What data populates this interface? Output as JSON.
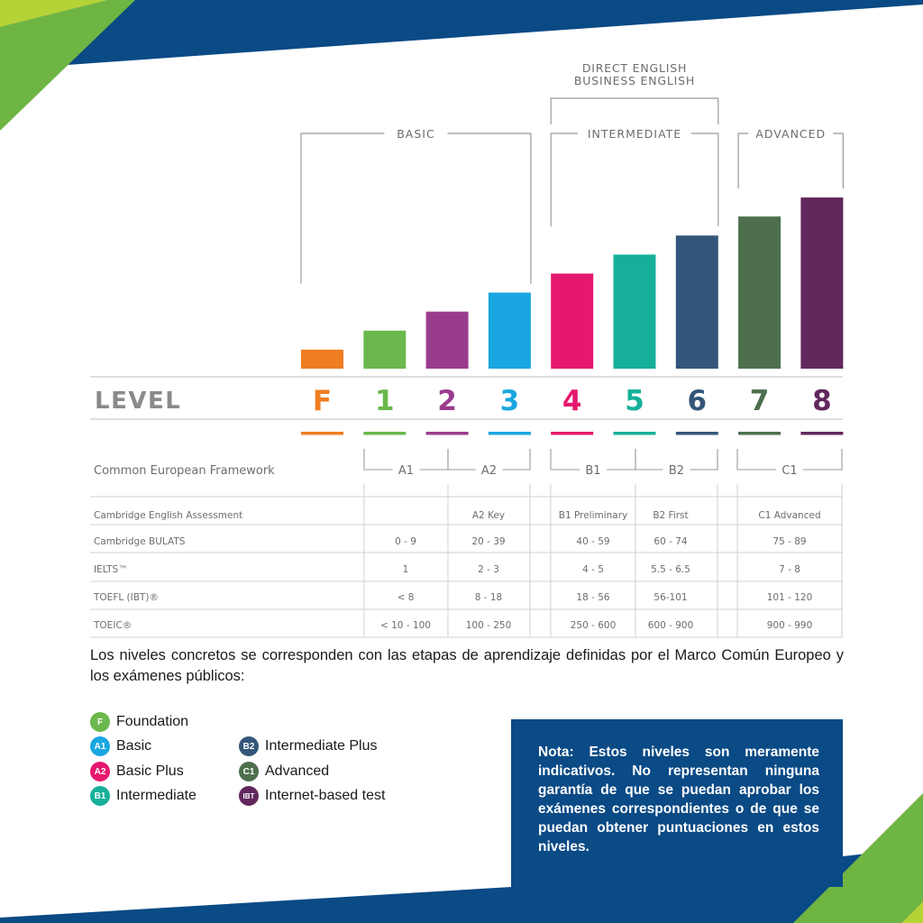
{
  "colors": {
    "navy": "#0a4a85",
    "green_accent": "#8dc63f"
  },
  "chart_data": {
    "type": "bar",
    "row_title": "LEVEL",
    "categories": [
      "F",
      "1",
      "2",
      "3",
      "4",
      "5",
      "6",
      "7",
      "8"
    ],
    "values": [
      1,
      2,
      3,
      4,
      5,
      6,
      7,
      8,
      9
    ],
    "colors": [
      "#ef7d22",
      "#6bb84d",
      "#9a3c8e",
      "#1aa6e0",
      "#e5186e",
      "#16b09a",
      "#34567a",
      "#4d6f4e",
      "#62285c"
    ],
    "groups": [
      {
        "label": "BASIC",
        "from": "F",
        "to": "3"
      },
      {
        "label": "INTERMEDIATE",
        "from": "4",
        "to": "6"
      },
      {
        "label": "ADVANCED",
        "from": "7",
        "to": "8"
      }
    ],
    "courses": [
      "DIRECT ENGLISH",
      "BUSINESS ENGLISH"
    ],
    "framework": {
      "title": "Common European Framework",
      "levels": [
        "A1",
        "A2",
        "B1",
        "B2",
        "C1"
      ]
    },
    "table": {
      "rows": [
        {
          "label": "Cambridge English Assessment",
          "cells": [
            "",
            "A2 Key",
            "B1 Preliminary",
            "B2 First",
            "C1 Advanced"
          ]
        },
        {
          "label": "Cambridge BULATS",
          "cells": [
            "0 - 9",
            "20 - 39",
            "40 - 59",
            "60 - 74",
            "75 - 89"
          ]
        },
        {
          "label": "IELTS™",
          "cells": [
            "1",
            "2 - 3",
            "4 - 5",
            "5.5 - 6.5",
            "7 - 8"
          ]
        },
        {
          "label": "TOEFL (IBT)®",
          "cells": [
            "< 8",
            "8 - 18",
            "18 - 56",
            "56-101",
            "101 - 120"
          ]
        },
        {
          "label": "TOEIC®",
          "cells": [
            "< 10 - 100",
            "100 - 250",
            "250 - 600",
            "600 - 900",
            "900 - 990"
          ]
        }
      ]
    }
  },
  "intro_text": "Los niveles concretos se corresponden con las etapas de aprendizaje definidas por el Marco Común Europeo y los exámenes públicos:",
  "legend": [
    {
      "code": "F",
      "label": "Foundation",
      "color": "#6bb84d"
    },
    {
      "code": "A1",
      "label": "Basic",
      "color": "#1aa6e0"
    },
    {
      "code": "A2",
      "label": "Basic Plus",
      "color": "#e5186e"
    },
    {
      "code": "B1",
      "label": "Intermediate",
      "color": "#16b09a"
    },
    {
      "code": "B2",
      "label": "Intermediate Plus",
      "color": "#34567a"
    },
    {
      "code": "C1",
      "label": "Advanced",
      "color": "#4d6f4e"
    },
    {
      "code": "IBT",
      "label": "Internet-based test",
      "color": "#62285c"
    }
  ],
  "note": "Nota: Estos niveles son meramente indicativos. No representan ninguna garantía de que se puedan aprobar los exámenes correspondientes o de que se puedan obtener puntuaciones en estos niveles."
}
